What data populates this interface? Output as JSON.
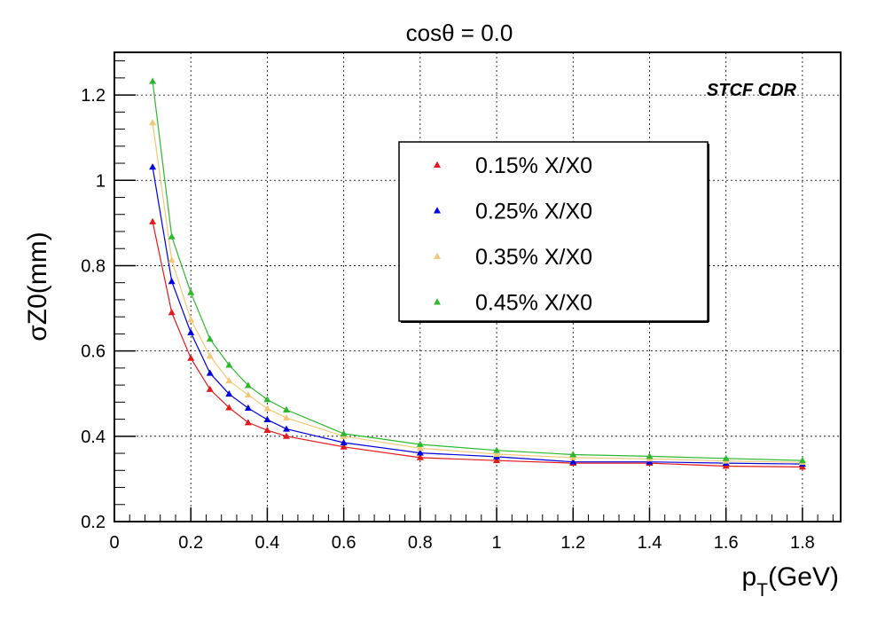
{
  "chart_data": {
    "type": "line",
    "title": "cosθ = 0.0",
    "watermark": "STCF CDR",
    "xlabel_main": "p",
    "xlabel_sub": "T",
    "xlabel_unit": "(GeV)",
    "ylabel": "σZ0(mm)",
    "xlim": [
      0,
      1.9
    ],
    "ylim": [
      0.2,
      1.3
    ],
    "grid": true,
    "legend_position": "top-right",
    "x_ticks": [
      0,
      0.2,
      0.4,
      0.6,
      0.8,
      1,
      1.2,
      1.4,
      1.6,
      1.8
    ],
    "x_tick_labels": [
      "0",
      "0.2",
      "0.4",
      "0.6",
      "0.8",
      "1",
      "1.2",
      "1.4",
      "1.6",
      "1.8"
    ],
    "y_ticks": [
      0.2,
      0.4,
      0.6,
      0.8,
      1.0,
      1.2
    ],
    "y_tick_labels": [
      "0.2",
      "0.4",
      "0.6",
      "0.8",
      "1",
      "1.2"
    ],
    "x": [
      0.1,
      0.15,
      0.2,
      0.25,
      0.3,
      0.35,
      0.4,
      0.45,
      0.6,
      0.8,
      1.0,
      1.2,
      1.4,
      1.6,
      1.8
    ],
    "series": [
      {
        "name": "0.15% X/X0",
        "color": "#e31a1c",
        "values": [
          0.903,
          0.69,
          0.583,
          0.51,
          0.467,
          0.432,
          0.414,
          0.4,
          0.375,
          0.35,
          0.343,
          0.337,
          0.337,
          0.33,
          0.328
        ]
      },
      {
        "name": "0.25% X/X0",
        "color": "#0000e0",
        "values": [
          1.031,
          0.763,
          0.643,
          0.548,
          0.499,
          0.466,
          0.439,
          0.417,
          0.385,
          0.361,
          0.352,
          0.34,
          0.34,
          0.337,
          0.335
        ]
      },
      {
        "name": "0.35% X/X0",
        "color": "#f0c878",
        "values": [
          1.135,
          0.813,
          0.673,
          0.588,
          0.53,
          0.497,
          0.465,
          0.443,
          0.4,
          0.372,
          0.358,
          0.35,
          0.347,
          0.342,
          0.339
        ]
      },
      {
        "name": "0.45% X/X0",
        "color": "#2db82d",
        "values": [
          1.232,
          0.868,
          0.737,
          0.628,
          0.567,
          0.519,
          0.486,
          0.462,
          0.406,
          0.381,
          0.367,
          0.357,
          0.353,
          0.348,
          0.343
        ]
      }
    ]
  }
}
